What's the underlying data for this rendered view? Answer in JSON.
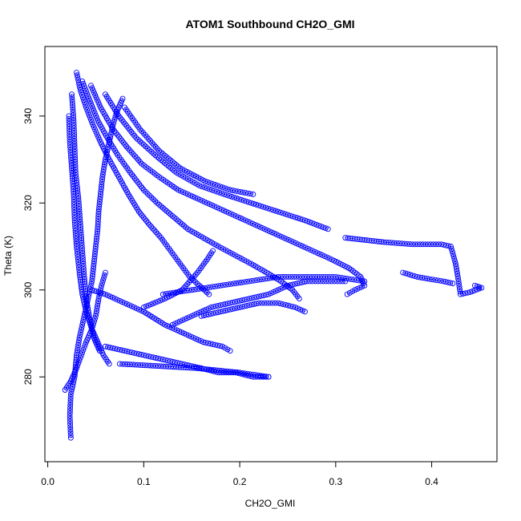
{
  "chart_data": {
    "type": "scatter",
    "title": "ATOM1 Southbound CH2O_GMI",
    "xlabel": "CH2O_GMI",
    "ylabel": "Theta (K)",
    "xlim": [
      -0.003,
      0.468
    ],
    "ylim": [
      260.5,
      356.0
    ],
    "x_ticks": [
      0.0,
      0.1,
      0.2,
      0.3,
      0.4
    ],
    "y_ticks": [
      280,
      300,
      320,
      340
    ],
    "grid": false,
    "legend": "none",
    "marker": "open-circle",
    "connect_points": true,
    "series": [
      {
        "color": "#0000ff",
        "segments": [
          [
            [
              0.024,
              266
            ],
            [
              0.023,
              271
            ],
            [
              0.024,
              276
            ],
            [
              0.028,
              280
            ],
            [
              0.03,
              285
            ],
            [
              0.033,
              289
            ],
            [
              0.036,
              292
            ],
            [
              0.04,
              296
            ],
            [
              0.043,
              299
            ],
            [
              0.046,
              302
            ],
            [
              0.048,
              306
            ],
            [
              0.05,
              310
            ],
            [
              0.052,
              314
            ],
            [
              0.053,
              318
            ],
            [
              0.055,
              322
            ],
            [
              0.057,
              326
            ],
            [
              0.06,
              330
            ],
            [
              0.064,
              334
            ],
            [
              0.068,
              338
            ],
            [
              0.072,
              341
            ],
            [
              0.078,
              344
            ]
          ],
          [
            [
              0.018,
              277
            ],
            [
              0.024,
              279
            ],
            [
              0.03,
              282
            ],
            [
              0.035,
              285
            ],
            [
              0.04,
              288
            ],
            [
              0.046,
              291
            ],
            [
              0.05,
              294
            ],
            [
              0.053,
              298
            ],
            [
              0.056,
              301
            ],
            [
              0.06,
              304
            ]
          ],
          [
            [
              0.022,
              340
            ],
            [
              0.023,
              334
            ],
            [
              0.025,
              328
            ],
            [
              0.027,
              322
            ],
            [
              0.028,
              316
            ],
            [
              0.03,
              310
            ],
            [
              0.033,
              304
            ],
            [
              0.036,
              299
            ],
            [
              0.04,
              295
            ],
            [
              0.046,
              291
            ],
            [
              0.052,
              288
            ],
            [
              0.058,
              285
            ],
            [
              0.064,
              283
            ]
          ],
          [
            [
              0.025,
              345
            ],
            [
              0.027,
              339
            ],
            [
              0.028,
              333
            ],
            [
              0.029,
              327
            ],
            [
              0.032,
              321
            ],
            [
              0.034,
              315
            ],
            [
              0.036,
              309
            ],
            [
              0.038,
              303
            ],
            [
              0.04,
              298
            ],
            [
              0.044,
              293
            ],
            [
              0.048,
              289
            ],
            [
              0.054,
              286
            ]
          ],
          [
            [
              0.03,
              350
            ],
            [
              0.034,
              346
            ],
            [
              0.04,
              342
            ],
            [
              0.047,
              338
            ],
            [
              0.055,
              334
            ],
            [
              0.064,
              330
            ],
            [
              0.074,
              326
            ],
            [
              0.084,
              322
            ],
            [
              0.095,
              318
            ],
            [
              0.106,
              315
            ],
            [
              0.118,
              312
            ],
            [
              0.128,
              309
            ],
            [
              0.138,
              306
            ],
            [
              0.148,
              303
            ],
            [
              0.158,
              301
            ],
            [
              0.168,
              299
            ]
          ],
          [
            [
              0.036,
              348
            ],
            [
              0.043,
              344
            ],
            [
              0.052,
              339
            ],
            [
              0.062,
              335
            ],
            [
              0.073,
              331
            ],
            [
              0.086,
              327
            ],
            [
              0.1,
              323
            ],
            [
              0.114,
              320
            ],
            [
              0.13,
              317
            ],
            [
              0.146,
              314
            ],
            [
              0.162,
              312
            ],
            [
              0.178,
              310
            ],
            [
              0.195,
              308
            ],
            [
              0.212,
              306
            ],
            [
              0.228,
              304
            ],
            [
              0.243,
              302
            ],
            [
              0.255,
              300
            ],
            [
              0.262,
              298
            ]
          ],
          [
            [
              0.045,
              347
            ],
            [
              0.055,
              342
            ],
            [
              0.068,
              337
            ],
            [
              0.082,
              333
            ],
            [
              0.098,
              329
            ],
            [
              0.116,
              326
            ],
            [
              0.136,
              323
            ],
            [
              0.156,
              321
            ],
            [
              0.176,
              319
            ],
            [
              0.196,
              317
            ],
            [
              0.216,
              315
            ],
            [
              0.236,
              313
            ],
            [
              0.256,
              311
            ],
            [
              0.276,
              309
            ],
            [
              0.296,
              307
            ],
            [
              0.314,
              305
            ],
            [
              0.326,
              303
            ],
            [
              0.33,
              301
            ],
            [
              0.32,
              300
            ],
            [
              0.312,
              299
            ]
          ],
          [
            [
              0.06,
              345
            ],
            [
              0.074,
              340
            ],
            [
              0.092,
              335
            ],
            [
              0.112,
              331
            ],
            [
              0.134,
              327
            ],
            [
              0.158,
              324
            ],
            [
              0.184,
              322
            ],
            [
              0.212,
              320
            ],
            [
              0.24,
              318
            ],
            [
              0.268,
              316
            ],
            [
              0.292,
              314
            ]
          ],
          [
            [
              0.08,
              342
            ],
            [
              0.096,
              337
            ],
            [
              0.116,
              332
            ],
            [
              0.138,
              328
            ],
            [
              0.164,
              325
            ],
            [
              0.19,
              323
            ],
            [
              0.214,
              322
            ]
          ],
          [
            [
              0.046,
              300
            ],
            [
              0.06,
              299
            ],
            [
              0.08,
              297
            ],
            [
              0.1,
              295
            ],
            [
              0.122,
              292
            ],
            [
              0.142,
              290
            ],
            [
              0.162,
              288
            ],
            [
              0.182,
              287
            ],
            [
              0.19,
              286
            ]
          ],
          [
            [
              0.06,
              287
            ],
            [
              0.08,
              286
            ],
            [
              0.1,
              285
            ],
            [
              0.12,
              284
            ],
            [
              0.14,
              283
            ],
            [
              0.16,
              282
            ],
            [
              0.178,
              281
            ],
            [
              0.196,
              281
            ],
            [
              0.214,
              280
            ],
            [
              0.23,
              280
            ]
          ],
          [
            [
              0.075,
              283
            ],
            [
              0.155,
              282
            ],
            [
              0.2,
              281
            ],
            [
              0.23,
              280
            ]
          ],
          [
            [
              0.1,
              296
            ],
            [
              0.122,
              298
            ],
            [
              0.14,
              300
            ],
            [
              0.156,
              304
            ],
            [
              0.166,
              307
            ],
            [
              0.172,
              309
            ]
          ],
          [
            [
              0.13,
              292
            ],
            [
              0.15,
              294
            ],
            [
              0.17,
              296
            ],
            [
              0.19,
              297
            ],
            [
              0.21,
              298
            ],
            [
              0.23,
              299
            ],
            [
              0.25,
              301
            ],
            [
              0.27,
              302
            ],
            [
              0.29,
              302
            ],
            [
              0.31,
              302
            ]
          ],
          [
            [
              0.16,
              294
            ],
            [
              0.18,
              295
            ],
            [
              0.2,
              296
            ],
            [
              0.22,
              297
            ],
            [
              0.24,
              297
            ],
            [
              0.258,
              296
            ],
            [
              0.268,
              295
            ]
          ],
          [
            [
              0.12,
              299
            ],
            [
              0.15,
              300
            ],
            [
              0.18,
              301
            ],
            [
              0.21,
              302
            ],
            [
              0.24,
              303
            ],
            [
              0.27,
              303
            ],
            [
              0.3,
              303
            ],
            [
              0.33,
              302
            ]
          ],
          [
            [
              0.31,
              312
            ],
            [
              0.33,
              311.5
            ],
            [
              0.35,
              311
            ],
            [
              0.38,
              310.5
            ],
            [
              0.41,
              310.5
            ],
            [
              0.42,
              310
            ],
            [
              0.425,
              306
            ],
            [
              0.428,
              302
            ],
            [
              0.43,
              299
            ],
            [
              0.44,
              299.5
            ],
            [
              0.452,
              300.5
            ],
            [
              0.445,
              301
            ]
          ],
          [
            [
              0.37,
              304
            ],
            [
              0.385,
              303
            ],
            [
              0.398,
              302.5
            ],
            [
              0.412,
              302
            ],
            [
              0.422,
              301.5
            ]
          ]
        ]
      }
    ]
  }
}
